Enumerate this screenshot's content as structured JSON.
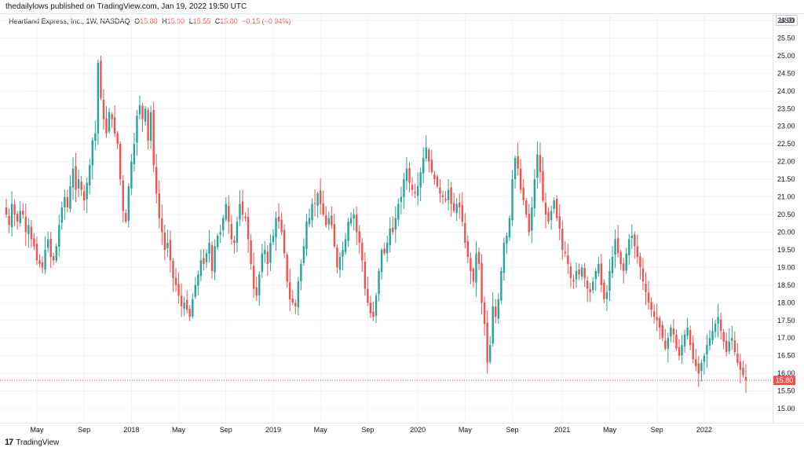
{
  "header": {
    "publisher_line": "thedailylows published on TradingView.com, Jan 19, 2022 19:50 UTC"
  },
  "legend": {
    "symbol": "Heartland Express, Inc., 1W, NASDAQ",
    "o_key": "O",
    "o_val": "15.88",
    "h_key": "H",
    "h_val": "15.90",
    "l_key": "L",
    "l_val": "15.55",
    "c_key": "C",
    "c_val": "15.80",
    "change": "−0.15 (−0.94%)"
  },
  "axis": {
    "currency": "USD",
    "last_price_label": "15.80"
  },
  "footer": {
    "brand": "TradingView"
  },
  "colors": {
    "up": "#26a69a",
    "down": "#ef5350",
    "grid": "#f0f3fa",
    "axis_text": "#131722"
  },
  "chart_data": {
    "type": "candlestick",
    "interval": "1W",
    "symbol": "Heartland Express, Inc.",
    "exchange": "NASDAQ",
    "ylim": [
      14.6,
      26.2
    ],
    "y_ticks": [
      "15.00",
      "15.50",
      "16.00",
      "16.50",
      "17.00",
      "17.50",
      "18.00",
      "18.50",
      "19.00",
      "19.50",
      "20.00",
      "20.50",
      "21.00",
      "21.50",
      "22.00",
      "22.50",
      "23.00",
      "23.50",
      "24.00",
      "24.50",
      "25.00",
      "25.50",
      "26.00"
    ],
    "x_ticks": [
      {
        "week": 11,
        "label": "May"
      },
      {
        "week": 28,
        "label": "Sep"
      },
      {
        "week": 45,
        "label": "2018"
      },
      {
        "week": 62,
        "label": "May"
      },
      {
        "week": 79,
        "label": "Sep"
      },
      {
        "week": 96,
        "label": "2019"
      },
      {
        "week": 113,
        "label": "May"
      },
      {
        "week": 130,
        "label": "Sep"
      },
      {
        "week": 148,
        "label": "2020"
      },
      {
        "week": 165,
        "label": "May"
      },
      {
        "week": 182,
        "label": "Sep"
      },
      {
        "week": 200,
        "label": "2021"
      },
      {
        "week": 217,
        "label": "May"
      },
      {
        "week": 234,
        "label": "Sep"
      },
      {
        "week": 251,
        "label": "2022"
      }
    ],
    "last_price": 15.8,
    "closes": [
      20.5,
      20.2,
      20.8,
      20.5,
      20.3,
      20.6,
      20.5,
      20.0,
      20.2,
      19.8,
      19.6,
      19.2,
      19.1,
      19.0,
      19.5,
      19.8,
      19.3,
      19.2,
      19.6,
      20.2,
      20.7,
      21.0,
      20.7,
      21.3,
      21.8,
      21.2,
      21.5,
      21.2,
      20.9,
      21.4,
      21.9,
      22.6,
      22.8,
      24.8,
      23.8,
      23.2,
      22.8,
      23.4,
      23.2,
      22.8,
      22.5,
      21.5,
      20.6,
      20.3,
      21.3,
      22.0,
      22.5,
      23.3,
      23.6,
      23.2,
      23.5,
      22.6,
      23.4,
      21.9,
      21.1,
      20.4,
      20.0,
      19.5,
      19.7,
      19.2,
      18.7,
      18.5,
      18.2,
      17.9,
      18.0,
      17.8,
      17.6,
      18.1,
      18.5,
      18.8,
      19.2,
      19.1,
      19.4,
      19.7,
      18.9,
      19.6,
      19.9,
      20.0,
      20.4,
      20.8,
      20.3,
      19.8,
      19.7,
      20.3,
      20.8,
      20.5,
      20.4,
      19.8,
      19.1,
      18.4,
      18.2,
      18.8,
      19.4,
      19.5,
      19.1,
      19.7,
      19.9,
      20.4,
      20.3,
      20.0,
      19.4,
      18.6,
      18.1,
      18.0,
      17.9,
      18.6,
      19.1,
      19.6,
      20.3,
      20.4,
      20.8,
      20.8,
      21.1,
      20.8,
      20.5,
      20.2,
      20.4,
      20.2,
      19.6,
      19.0,
      19.3,
      19.5,
      19.8,
      20.3,
      20.4,
      20.5,
      20.0,
      19.7,
      19.2,
      18.4,
      18.0,
      17.7,
      17.6,
      18.2,
      18.9,
      19.5,
      19.4,
      19.7,
      20.1,
      20.0,
      20.4,
      20.8,
      21.0,
      21.5,
      21.8,
      21.4,
      21.2,
      21.1,
      21.3,
      21.7,
      22.1,
      22.4,
      22.0,
      21.7,
      21.5,
      21.3,
      21.1,
      21.0,
      20.9,
      21.2,
      20.8,
      20.6,
      20.8,
      20.7,
      20.3,
      19.7,
      19.3,
      18.9,
      18.6,
      19.4,
      19.1,
      18.0,
      17.4,
      16.3,
      16.8,
      17.9,
      17.6,
      18.1,
      18.9,
      19.7,
      19.9,
      20.4,
      21.5,
      22.1,
      21.8,
      21.2,
      20.9,
      20.5,
      20.0,
      20.7,
      21.5,
      22.2,
      21.7,
      20.9,
      20.5,
      20.3,
      20.6,
      20.9,
      20.4,
      20.1,
      19.5,
      19.4,
      19.1,
      18.7,
      18.6,
      18.9,
      18.8,
      19.0,
      18.7,
      18.4,
      18.3,
      18.6,
      18.9,
      19.1,
      18.5,
      18.1,
      18.3,
      18.9,
      19.3,
      19.8,
      19.4,
      19.1,
      18.9,
      19.4,
      19.8,
      19.9,
      19.6,
      19.3,
      19.0,
      18.6,
      18.3,
      18.0,
      17.8,
      17.6,
      17.5,
      17.3,
      17.0,
      16.7,
      17.0,
      17.3,
      17.1,
      16.7,
      16.5,
      16.8,
      17.1,
      17.3,
      16.8,
      16.4,
      16.2,
      16.0,
      16.3,
      16.5,
      16.8,
      17.0,
      17.2,
      17.4,
      17.6,
      17.2,
      16.9,
      16.6,
      16.9,
      17.0,
      16.6,
      16.3,
      16.1,
      15.95,
      15.8
    ]
  }
}
